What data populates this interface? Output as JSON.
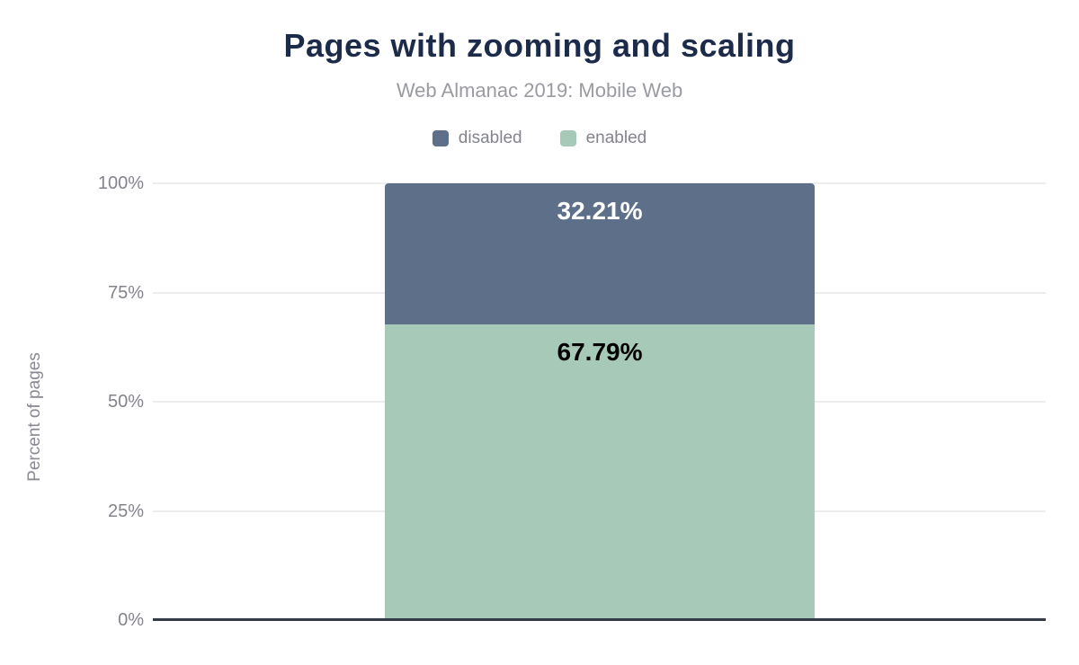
{
  "header": {
    "title": "Pages with zooming and scaling",
    "subtitle": "Web Almanac 2019: Mobile Web"
  },
  "legend": {
    "items": [
      {
        "label": "disabled",
        "color": "#5e7089"
      },
      {
        "label": "enabled",
        "color": "#a7cab8"
      }
    ]
  },
  "chart_data": {
    "type": "bar",
    "stacked": true,
    "title": "Pages with zooming and scaling",
    "subtitle": "Web Almanac 2019: Mobile Web",
    "categories": [
      ""
    ],
    "series": [
      {
        "name": "disabled",
        "values": [
          32.21
        ],
        "data_label": "32.21%",
        "color": "#5e7089",
        "label_color": "#ffffff"
      },
      {
        "name": "enabled",
        "values": [
          67.79
        ],
        "data_label": "67.79%",
        "color": "#a7cab8",
        "label_color": "#000000"
      }
    ],
    "xlabel": "",
    "ylabel": "Percent of pages",
    "ylim": [
      0,
      100
    ],
    "yticks": [
      {
        "value": 0,
        "label": "0%"
      },
      {
        "value": 25,
        "label": "25%"
      },
      {
        "value": 50,
        "label": "50%"
      },
      {
        "value": 75,
        "label": "75%"
      },
      {
        "value": 100,
        "label": "100%"
      }
    ],
    "grid": true,
    "legend_position": "top",
    "colors": {
      "title": "#1c2b4a",
      "subtitle": "#9a9ba1",
      "tick_text": "#83848c",
      "gridline": "#ededed",
      "baseline": "#343b45"
    }
  }
}
